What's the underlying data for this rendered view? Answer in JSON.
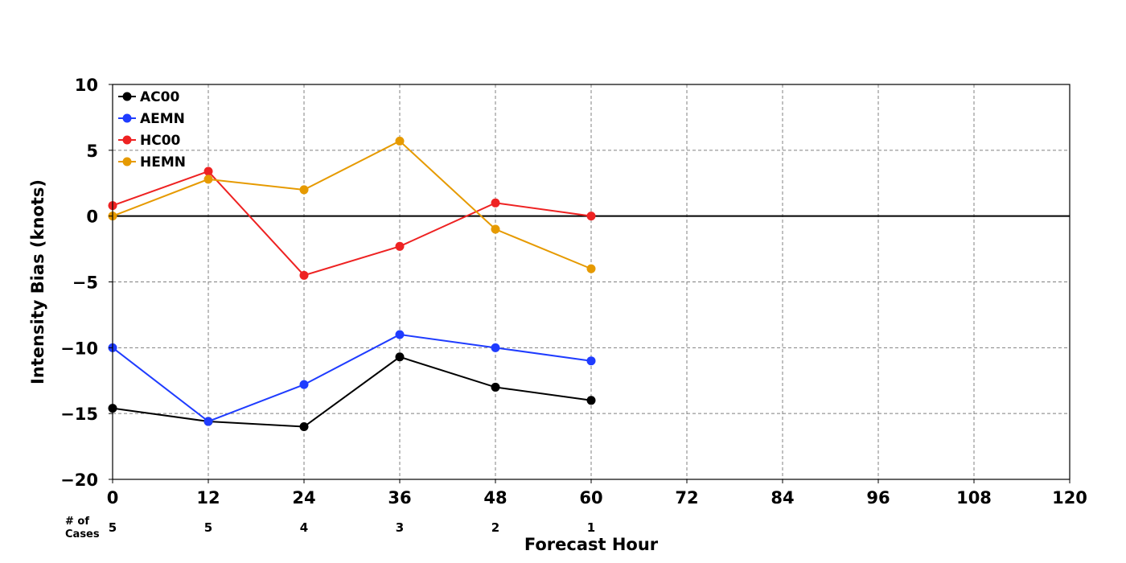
{
  "chart_data": {
    "type": "line",
    "title": "",
    "xlabel": "Forecast Hour",
    "ylabel": "Intensity Bias (knots)",
    "xlim": [
      0,
      120
    ],
    "ylim": [
      -20,
      10
    ],
    "x_ticks": [
      "0",
      "12",
      "24",
      "36",
      "48",
      "60",
      "72",
      "84",
      "96",
      "108",
      "120"
    ],
    "y_ticks": [
      "10",
      "5",
      "0",
      "−5",
      "−10",
      "−15",
      "−20"
    ],
    "grid": true,
    "legend_position": "top-left",
    "x": [
      0,
      12,
      24,
      36,
      48,
      60
    ],
    "series": [
      {
        "name": "AC00",
        "color": "#000000",
        "values": [
          -14.6,
          -15.6,
          -16.0,
          -10.7,
          -13.0,
          -14.0
        ]
      },
      {
        "name": "AEMN",
        "color": "#1f3cff",
        "values": [
          -10.0,
          -15.6,
          -12.8,
          -9.0,
          -10.0,
          -11.0
        ]
      },
      {
        "name": "HC00",
        "color": "#ee2222",
        "values": [
          0.8,
          3.4,
          -4.5,
          -2.3,
          1.0,
          0.0
        ]
      },
      {
        "name": "HEMN",
        "color": "#e69a00",
        "values": [
          0.0,
          2.8,
          2.0,
          5.7,
          -1.0,
          -4.0
        ]
      }
    ],
    "cases": {
      "label_line1": "# of",
      "label_line2": "Cases",
      "hours": [
        0,
        12,
        24,
        36,
        48,
        60
      ],
      "counts": [
        "5",
        "5",
        "4",
        "3",
        "2",
        "1"
      ]
    }
  }
}
